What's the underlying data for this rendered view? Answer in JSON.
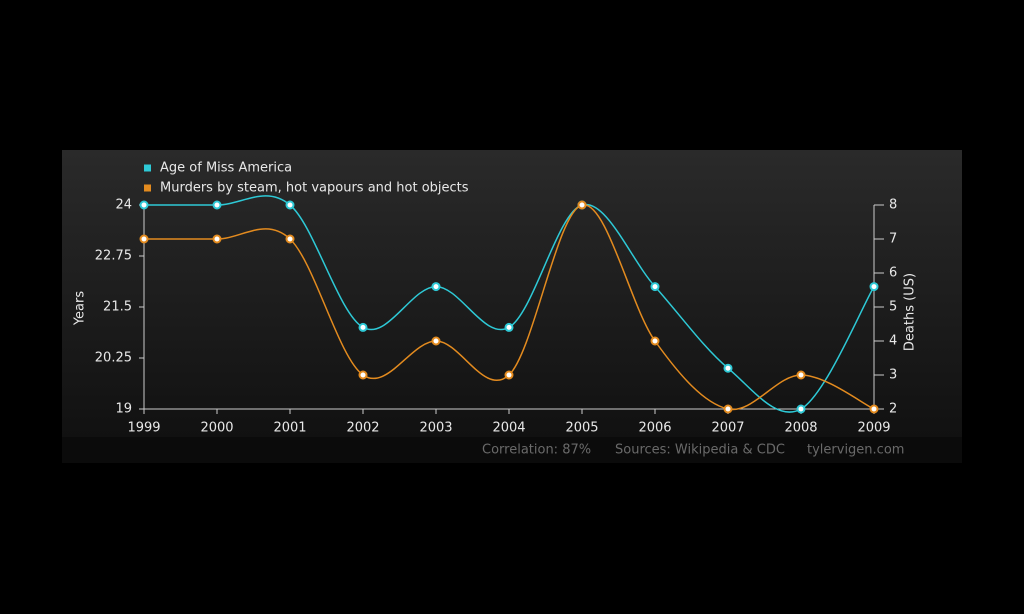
{
  "chart_data": {
    "type": "line",
    "categories": [
      "1999",
      "2000",
      "2001",
      "2002",
      "2003",
      "2004",
      "2005",
      "2006",
      "2007",
      "2008",
      "2009"
    ],
    "series": [
      {
        "name": "Age of Miss America",
        "color": "#2ec9d6",
        "values": [
          24,
          24,
          24,
          21,
          22,
          21,
          24,
          22,
          20,
          19,
          22
        ]
      },
      {
        "name": "Murders by steam, hot vapours and hot objects",
        "color": "#e38b1f",
        "axis": "y2",
        "values": [
          7,
          7,
          7,
          3,
          4,
          3,
          8,
          4,
          2,
          3,
          2
        ]
      }
    ],
    "ylabel": "Years",
    "y2label": "Deaths (US)",
    "ylim": [
      19,
      24
    ],
    "yticks": [
      19,
      20.25,
      21.5,
      22.75,
      24
    ],
    "y2lim": [
      2,
      8
    ],
    "y2ticks": [
      2,
      3,
      4,
      5,
      6,
      7,
      8
    ],
    "footer": {
      "correlation": "Correlation: 87%",
      "sources": "Sources: Wikipedia & CDC",
      "site": "tylervigen.com"
    }
  }
}
